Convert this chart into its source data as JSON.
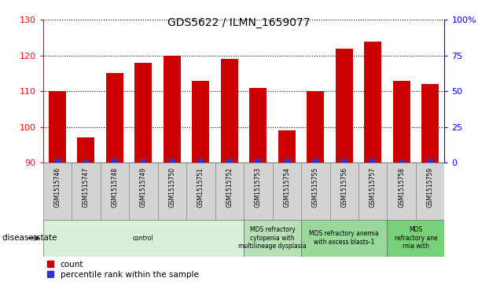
{
  "title": "GDS5622 / ILMN_1659077",
  "samples": [
    "GSM1515746",
    "GSM1515747",
    "GSM1515748",
    "GSM1515749",
    "GSM1515750",
    "GSM1515751",
    "GSM1515752",
    "GSM1515753",
    "GSM1515754",
    "GSM1515755",
    "GSM1515756",
    "GSM1515757",
    "GSM1515758",
    "GSM1515759"
  ],
  "count_values": [
    110,
    97,
    115,
    118,
    120,
    113,
    119,
    111,
    99,
    110,
    122,
    124,
    113,
    112
  ],
  "percentile_values": [
    3,
    2,
    3,
    3,
    3,
    3,
    3,
    3,
    3,
    3,
    3,
    3,
    2,
    3
  ],
  "ymin": 90,
  "ymax": 130,
  "y_ticks": [
    90,
    100,
    110,
    120,
    130
  ],
  "y2_ticks": [
    0,
    25,
    50,
    75,
    100
  ],
  "bar_color_red": "#cc0000",
  "bar_color_blue": "#3333cc",
  "bg_color_tick": "#d4d4d4",
  "plot_bg": "#ffffff",
  "disease_groups": [
    {
      "label": "control",
      "start": 0,
      "end": 7,
      "color": "#d8f0d8"
    },
    {
      "label": "MDS refractory\ncytopenia with\nmultilineage dysplasia",
      "start": 7,
      "end": 9,
      "color": "#b8e0b8"
    },
    {
      "label": "MDS refractory anemia\nwith excess blasts-1",
      "start": 9,
      "end": 12,
      "color": "#98d898"
    },
    {
      "label": "MDS\nrefractory ane\nrnia with",
      "start": 12,
      "end": 14,
      "color": "#78d078"
    }
  ],
  "legend_labels": [
    "count",
    "percentile rank within the sample"
  ],
  "disease_state_label": "disease state"
}
